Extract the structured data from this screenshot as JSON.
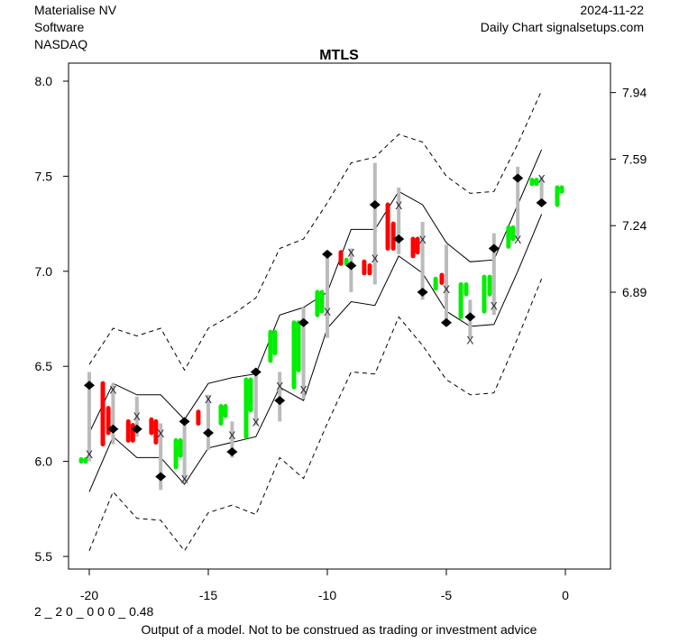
{
  "header": {
    "company": "Materialise NV",
    "sector": "Software",
    "exchange": "NASDAQ",
    "date": "2024-11-22",
    "source": "Daily Chart signalsetups.com"
  },
  "footer": {
    "code": "2 _ 2 0 _ 0 0 0 _ 0.48",
    "disclaimer": "Output of a model. Not to be construed as trading or investment advice"
  },
  "colors": {
    "up": "#00ee00",
    "down": "#ff0000",
    "range": "#bbbbbb",
    "line": "#000000"
  },
  "chart_data": {
    "type": "line",
    "title": "MTLS",
    "xlabel": "",
    "ylabel": "",
    "xlim": [
      -20.9,
      1.85
    ],
    "ylim": [
      5.45,
      8.1
    ],
    "x_ticks": [
      -20,
      -15,
      -10,
      -5,
      0
    ],
    "x_tick_labels": [
      "-20",
      "-15",
      "-10",
      "-5",
      "0"
    ],
    "y_ticks": [
      5.5,
      6.0,
      6.5,
      7.0,
      7.5,
      8.0
    ],
    "y_tick_labels": [
      "5.5",
      "6.0",
      "6.5",
      "7.0",
      "7.5",
      "8.0"
    ],
    "right_ticks": [
      7.94,
      7.59,
      7.24,
      6.89
    ],
    "right_tick_labels": [
      "7.94",
      "7.59",
      "7.24",
      "6.89"
    ],
    "x": [
      -20,
      -19,
      -18,
      -17,
      -16,
      -15,
      -14,
      -13,
      -12,
      -11,
      -10,
      -9,
      -8,
      -7,
      -6,
      -5,
      -4,
      -3,
      -2,
      -1
    ],
    "series": [
      {
        "name": "upper_band_outer",
        "style": "dashed",
        "values": [
          6.51,
          6.7,
          6.66,
          6.7,
          6.48,
          6.7,
          6.77,
          6.86,
          7.12,
          7.17,
          7.36,
          7.57,
          7.6,
          7.72,
          7.68,
          7.5,
          7.41,
          7.42,
          7.67,
          7.95
        ]
      },
      {
        "name": "upper_band",
        "style": "solid",
        "values": [
          6.15,
          6.41,
          6.35,
          6.35,
          6.22,
          6.41,
          6.44,
          6.46,
          6.77,
          6.81,
          6.89,
          7.22,
          7.22,
          7.42,
          7.35,
          7.15,
          7.05,
          7.06,
          7.35,
          7.64
        ]
      },
      {
        "name": "lower_band",
        "style": "solid",
        "values": [
          5.84,
          6.13,
          6.02,
          6.02,
          5.88,
          6.07,
          6.1,
          6.13,
          6.39,
          6.32,
          6.7,
          6.84,
          6.82,
          7.08,
          6.99,
          6.79,
          6.71,
          6.72,
          7.0,
          7.3
        ]
      },
      {
        "name": "lower_band_outer",
        "style": "dashed",
        "values": [
          5.53,
          5.84,
          5.7,
          5.69,
          5.53,
          5.73,
          5.77,
          5.72,
          6.02,
          5.91,
          6.2,
          6.47,
          6.46,
          6.76,
          6.61,
          6.43,
          6.35,
          6.36,
          6.65,
          6.96
        ]
      }
    ],
    "ranges": {
      "high": [
        6.47,
        6.41,
        6.34,
        6.2,
        6.21,
        6.35,
        6.21,
        6.49,
        6.47,
        6.81,
        7.1,
        7.12,
        7.57,
        7.44,
        7.26,
        7.14,
        6.85,
        7.2,
        7.55,
        7.5
      ],
      "low": [
        6.0,
        6.09,
        6.13,
        5.85,
        5.89,
        6.06,
        6.02,
        6.19,
        6.21,
        6.33,
        6.65,
        6.89,
        6.93,
        7.09,
        6.85,
        6.73,
        6.65,
        6.77,
        7.17,
        7.34
      ],
      "x_mark": [
        6.04,
        6.38,
        6.24,
        6.15,
        5.91,
        6.33,
        6.14,
        6.21,
        6.4,
        6.38,
        6.79,
        7.1,
        7.07,
        7.35,
        7.17,
        6.91,
        6.64,
        6.82,
        7.17,
        7.49
      ],
      "diamond": [
        6.4,
        6.17,
        6.17,
        5.92,
        6.21,
        6.15,
        6.05,
        6.47,
        6.32,
        6.73,
        7.09,
        7.03,
        7.35,
        7.17,
        6.89,
        6.73,
        6.76,
        7.12,
        7.49,
        7.36
      ]
    },
    "candles": [
      {
        "x": -20.34,
        "hi": 6.01,
        "lo": 6.0,
        "dir": "up"
      },
      {
        "x": -20.15,
        "hi": 6.01,
        "lo": 6.0,
        "dir": "up"
      },
      {
        "x": -19.43,
        "hi": 6.41,
        "lo": 6.09,
        "dir": "down"
      },
      {
        "x": -19.2,
        "hi": 6.28,
        "lo": 6.15,
        "dir": "down"
      },
      {
        "x": -18.36,
        "hi": 6.21,
        "lo": 6.11,
        "dir": "down"
      },
      {
        "x": -18.17,
        "hi": 6.19,
        "lo": 6.11,
        "dir": "down"
      },
      {
        "x": -17.39,
        "hi": 6.22,
        "lo": 6.15,
        "dir": "down"
      },
      {
        "x": -17.2,
        "hi": 6.21,
        "lo": 6.1,
        "dir": "down"
      },
      {
        "x": -16.36,
        "hi": 6.11,
        "lo": 5.97,
        "dir": "up"
      },
      {
        "x": -16.17,
        "hi": 6.11,
        "lo": 6.03,
        "dir": "up"
      },
      {
        "x": -15.42,
        "hi": 6.26,
        "lo": 6.2,
        "dir": "down"
      },
      {
        "x": -14.47,
        "hi": 6.29,
        "lo": 6.2,
        "dir": "up"
      },
      {
        "x": -14.28,
        "hi": 6.29,
        "lo": 6.24,
        "dir": "up"
      },
      {
        "x": -13.41,
        "hi": 6.43,
        "lo": 6.13,
        "dir": "up"
      },
      {
        "x": -13.22,
        "hi": 6.43,
        "lo": 6.27,
        "dir": "up"
      },
      {
        "x": -12.39,
        "hi": 6.68,
        "lo": 6.53,
        "dir": "up"
      },
      {
        "x": -12.2,
        "hi": 6.68,
        "lo": 6.57,
        "dir": "up"
      },
      {
        "x": -11.4,
        "hi": 6.73,
        "lo": 6.39,
        "dir": "up"
      },
      {
        "x": -11.21,
        "hi": 6.73,
        "lo": 6.48,
        "dir": "up"
      },
      {
        "x": -10.42,
        "hi": 6.89,
        "lo": 6.77,
        "dir": "up"
      },
      {
        "x": -10.23,
        "hi": 6.89,
        "lo": 6.79,
        "dir": "up"
      },
      {
        "x": -9.43,
        "hi": 7.1,
        "lo": 7.04,
        "dir": "down"
      },
      {
        "x": -9.2,
        "hi": 7.06,
        "lo": 7.04,
        "dir": "up"
      },
      {
        "x": -8.45,
        "hi": 7.05,
        "lo": 6.99,
        "dir": "down"
      },
      {
        "x": -8.22,
        "hi": 7.03,
        "lo": 6.99,
        "dir": "down"
      },
      {
        "x": -7.46,
        "hi": 7.35,
        "lo": 7.12,
        "dir": "down"
      },
      {
        "x": -7.23,
        "hi": 7.25,
        "lo": 7.12,
        "dir": "down"
      },
      {
        "x": -6.4,
        "hi": 7.17,
        "lo": 7.08,
        "dir": "down"
      },
      {
        "x": -6.21,
        "hi": 7.17,
        "lo": 7.1,
        "dir": "down"
      },
      {
        "x": -5.45,
        "hi": 6.96,
        "lo": 6.91,
        "dir": "up"
      },
      {
        "x": -5.19,
        "hi": 6.98,
        "lo": 6.94,
        "dir": "down"
      },
      {
        "x": -4.39,
        "hi": 6.93,
        "lo": 6.76,
        "dir": "up"
      },
      {
        "x": -4.17,
        "hi": 6.93,
        "lo": 6.88,
        "dir": "up"
      },
      {
        "x": -3.41,
        "hi": 6.97,
        "lo": 6.79,
        "dir": "up"
      },
      {
        "x": -3.18,
        "hi": 6.97,
        "lo": 6.88,
        "dir": "up"
      },
      {
        "x": -2.39,
        "hi": 7.23,
        "lo": 7.13,
        "dir": "up"
      },
      {
        "x": -2.2,
        "hi": 7.23,
        "lo": 7.17,
        "dir": "up"
      },
      {
        "x": -1.4,
        "hi": 7.48,
        "lo": 7.46,
        "dir": "up"
      },
      {
        "x": -1.21,
        "hi": 7.48,
        "lo": 7.46,
        "dir": "up"
      },
      {
        "x": -0.34,
        "hi": 7.44,
        "lo": 7.35,
        "dir": "up"
      },
      {
        "x": -0.15,
        "hi": 7.44,
        "lo": 7.42,
        "dir": "up"
      }
    ]
  }
}
